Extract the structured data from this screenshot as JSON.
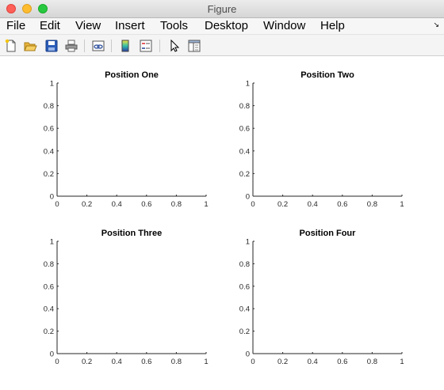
{
  "window": {
    "title": "Figure",
    "controls": [
      "close",
      "minimize",
      "zoom"
    ]
  },
  "menubar": {
    "items": [
      {
        "label": "File"
      },
      {
        "label": "Edit"
      },
      {
        "label": "View"
      },
      {
        "label": "Insert"
      },
      {
        "label": "Tools"
      },
      {
        "label": "Desktop"
      },
      {
        "label": "Window"
      },
      {
        "label": "Help"
      }
    ],
    "dock_arrow_icon": "dock-arrow-icon"
  },
  "toolbar": {
    "buttons": [
      {
        "name": "new-figure",
        "icon": "new-file-icon"
      },
      {
        "name": "open-file",
        "icon": "folder-open-icon"
      },
      {
        "name": "save-figure",
        "icon": "save-disk-icon"
      },
      {
        "name": "print-figure",
        "icon": "printer-icon"
      },
      {
        "name": "link-plot",
        "icon": "link-plot-icon"
      },
      {
        "name": "insert-colorbar",
        "icon": "colorbar-icon"
      },
      {
        "name": "insert-legend",
        "icon": "legend-icon"
      },
      {
        "name": "edit-plot",
        "icon": "pointer-arrow-icon"
      },
      {
        "name": "show-plot-tools",
        "icon": "plot-tools-panel-icon"
      }
    ]
  },
  "chart_data": [
    {
      "type": "line",
      "title": "Position One",
      "series": [],
      "xlim": [
        0,
        1
      ],
      "ylim": [
        0,
        1
      ],
      "xticks": [
        "0",
        "0.2",
        "0.4",
        "0.6",
        "0.8",
        "1"
      ],
      "yticks": [
        "0",
        "0.2",
        "0.4",
        "0.6",
        "0.8",
        "1"
      ],
      "xlabel": "",
      "ylabel": "",
      "grid": false
    },
    {
      "type": "line",
      "title": "Position Two",
      "series": [],
      "xlim": [
        0,
        1
      ],
      "ylim": [
        0,
        1
      ],
      "xticks": [
        "0",
        "0.2",
        "0.4",
        "0.6",
        "0.8",
        "1"
      ],
      "yticks": [
        "0",
        "0.2",
        "0.4",
        "0.6",
        "0.8",
        "1"
      ],
      "xlabel": "",
      "ylabel": "",
      "grid": false
    },
    {
      "type": "line",
      "title": "Position Three",
      "series": [],
      "xlim": [
        0,
        1
      ],
      "ylim": [
        0,
        1
      ],
      "xticks": [
        "0",
        "0.2",
        "0.4",
        "0.6",
        "0.8",
        "1"
      ],
      "yticks": [
        "0",
        "0.2",
        "0.4",
        "0.6",
        "0.8",
        "1"
      ],
      "xlabel": "",
      "ylabel": "",
      "grid": false
    },
    {
      "type": "line",
      "title": "Position Four",
      "series": [],
      "xlim": [
        0,
        1
      ],
      "ylim": [
        0,
        1
      ],
      "xticks": [
        "0",
        "0.2",
        "0.4",
        "0.6",
        "0.8",
        "1"
      ],
      "yticks": [
        "0",
        "0.2",
        "0.4",
        "0.6",
        "0.8",
        "1"
      ],
      "xlabel": "",
      "ylabel": "",
      "grid": false
    }
  ]
}
